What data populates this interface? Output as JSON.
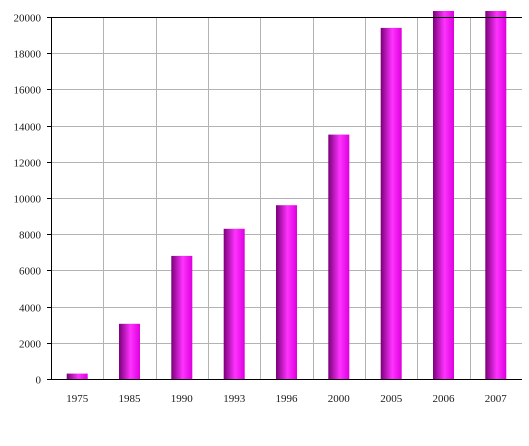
{
  "chart_data": {
    "type": "bar",
    "title": "",
    "xlabel": "",
    "ylabel": "",
    "categories": [
      "1975",
      "1985",
      "1990",
      "1993",
      "1996",
      "2000",
      "2005",
      "2006",
      "2007"
    ],
    "series": [
      {
        "values": [
          300,
          3050,
          6800,
          8300,
          9600,
          13500,
          19400,
          20200,
          20900
        ]
      }
    ],
    "ylim": [
      0,
      20000
    ],
    "yticks": [
      "0",
      "2000",
      "4000",
      "6000",
      "8000",
      "10000",
      "12000",
      "14000",
      "16000",
      "18000",
      "20000"
    ],
    "grid": true,
    "legend": "none",
    "colors": {
      "bar_dark": "#7a007a",
      "bar_light": "#ff33ff",
      "bar_mid": "#dd00dd",
      "grid": "#b3b3b3",
      "axis": "#000000"
    }
  }
}
